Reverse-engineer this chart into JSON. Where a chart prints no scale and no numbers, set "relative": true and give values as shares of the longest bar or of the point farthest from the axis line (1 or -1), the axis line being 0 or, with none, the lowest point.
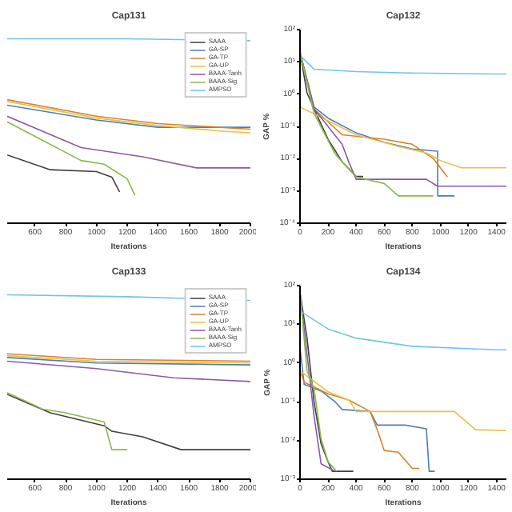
{
  "chart_data": [
    {
      "type": "line",
      "title": "Cap131",
      "xlabel": "Iterations",
      "relative": true,
      "xlim": [
        420,
        2000
      ],
      "xticks": [
        600,
        800,
        1000,
        1200,
        1400,
        1600,
        1800,
        2000
      ],
      "tick_labels": "x",
      "legend": "top right",
      "series": [
        {
          "name": "SAAA",
          "color": "#404040",
          "x": [
            420,
            700,
            1000,
            1100,
            1150
          ],
          "values": [
            0.37,
            0.29,
            0.28,
            0.25,
            0.17
          ]
        },
        {
          "name": "GA-SP",
          "color": "#4a7fb5",
          "x": [
            420,
            1000,
            1400,
            2000
          ],
          "values": [
            0.64,
            0.56,
            0.52,
            0.52
          ]
        },
        {
          "name": "GA-TP",
          "color": "#d9822b",
          "x": [
            420,
            1000,
            1400,
            2000
          ],
          "values": [
            0.67,
            0.58,
            0.54,
            0.51
          ]
        },
        {
          "name": "GA-UP",
          "color": "#e8c04a",
          "x": [
            420,
            1000,
            1400,
            1800,
            2000
          ],
          "values": [
            0.66,
            0.57,
            0.53,
            0.5,
            0.49
          ]
        },
        {
          "name": "BAAA-Tanh",
          "color": "#8a5aa8",
          "x": [
            420,
            900,
            1300,
            1650,
            2000
          ],
          "values": [
            0.58,
            0.41,
            0.36,
            0.3,
            0.3
          ]
        },
        {
          "name": "BAAA-Sig",
          "color": "#8ab84a",
          "x": [
            420,
            900,
            1050,
            1200,
            1250
          ],
          "values": [
            0.55,
            0.34,
            0.32,
            0.24,
            0.15
          ]
        },
        {
          "name": "AMPSO",
          "color": "#6ec6e6",
          "x": [
            420,
            1200,
            2000
          ],
          "values": [
            1.0,
            1.0,
            0.99
          ]
        }
      ]
    },
    {
      "type": "line",
      "title": "Cap132",
      "xlabel": "Iterations",
      "ylabel": "GAP %",
      "log": "y",
      "xlim": [
        0,
        1470
      ],
      "xticks": [
        0,
        200,
        400,
        600,
        800,
        1000,
        1200,
        1400
      ],
      "ylim": [
        0.0001,
        100
      ],
      "yticks": [
        {
          "value": 0.0001,
          "label": "10⁻⁴"
        },
        {
          "value": 0.001,
          "label": "10⁻³"
        },
        {
          "value": 0.01,
          "label": "10⁻²"
        },
        {
          "value": 0.1,
          "label": "10⁻¹"
        },
        {
          "value": 1,
          "label": "10⁰"
        },
        {
          "value": 10,
          "label": "10¹"
        },
        {
          "value": 100,
          "label": "10²"
        }
      ],
      "series": [
        {
          "color": "#404040",
          "x": [
            0,
            50,
            100,
            200,
            300,
            400,
            450
          ],
          "values": [
            20,
            1.1,
            0.35,
            0.04,
            0.008,
            0.0028,
            0.0028
          ]
        },
        {
          "color": "#4a7fb5",
          "x": [
            0,
            100,
            200,
            400,
            600,
            800,
            980,
            981,
            1100
          ],
          "values": [
            20,
            0.4,
            0.18,
            0.063,
            0.032,
            0.02,
            0.017,
            0.0007,
            0.0007
          ]
        },
        {
          "color": "#d9822b",
          "x": [
            0,
            100,
            300,
            600,
            800,
            950,
            1050
          ],
          "values": [
            20,
            0.35,
            0.055,
            0.04,
            0.028,
            0.01,
            0.0027
          ]
        },
        {
          "color": "#e8c04a",
          "x": [
            0,
            400,
            700,
            900,
            1000,
            1150,
            1470
          ],
          "values": [
            0.4,
            0.055,
            0.024,
            0.015,
            0.0087,
            0.0052,
            0.0052
          ]
        },
        {
          "color": "#8a5aa8",
          "x": [
            0,
            100,
            300,
            350,
            400,
            900,
            980,
            1470
          ],
          "values": [
            20,
            0.35,
            0.028,
            0.0074,
            0.0023,
            0.0023,
            0.0014,
            0.0014
          ]
        },
        {
          "color": "#8ab84a",
          "x": [
            0,
            100,
            250,
            400,
            600,
            700,
            950
          ],
          "values": [
            20,
            0.25,
            0.014,
            0.0027,
            0.0017,
            0.0007,
            0.0007
          ]
        },
        {
          "color": "#6ec6e6",
          "x": [
            0,
            100,
            400,
            800,
            1400,
            1470
          ],
          "values": [
            16,
            5.9,
            5,
            4.5,
            4.2,
            4.2
          ]
        }
      ]
    },
    {
      "type": "line",
      "title": "Cap133",
      "xlabel": "Iterations",
      "relative": true,
      "xlim": [
        420,
        2000
      ],
      "xticks": [
        600,
        800,
        1000,
        1200,
        1400,
        1600,
        1800,
        2000
      ],
      "tick_labels": "x",
      "legend": "top right",
      "series": [
        {
          "name": "SAAA",
          "color": "#404040",
          "x": [
            420,
            700,
            1050,
            1100,
            1300,
            1550,
            2000
          ],
          "values": [
            0.46,
            0.36,
            0.29,
            0.26,
            0.23,
            0.16,
            0.16
          ]
        },
        {
          "name": "GA-SP",
          "color": "#4a7fb5",
          "x": [
            420,
            1000,
            2000
          ],
          "values": [
            0.66,
            0.63,
            0.62
          ]
        },
        {
          "name": "GA-TP",
          "color": "#d9822b",
          "x": [
            420,
            1000,
            2000
          ],
          "values": [
            0.68,
            0.65,
            0.64
          ]
        },
        {
          "name": "GA-UP",
          "color": "#e8c04a",
          "x": [
            420,
            1000,
            2000
          ],
          "values": [
            0.67,
            0.64,
            0.63
          ]
        },
        {
          "name": "BAAA-Tanh",
          "color": "#8a5aa8",
          "x": [
            420,
            1000,
            1500,
            2000
          ],
          "values": [
            0.64,
            0.6,
            0.55,
            0.53
          ]
        },
        {
          "name": "BAAA-Sig",
          "color": "#8ab84a",
          "x": [
            420,
            650,
            800,
            1050,
            1100,
            1200
          ],
          "values": [
            0.47,
            0.38,
            0.36,
            0.31,
            0.16,
            0.16
          ]
        },
        {
          "name": "AMPSO",
          "color": "#6ec6e6",
          "x": [
            420,
            1200,
            2000
          ],
          "values": [
            1.0,
            0.99,
            0.97
          ]
        }
      ]
    },
    {
      "type": "line",
      "title": "Cap134",
      "xlabel": "Iterations",
      "ylabel": "GAP %",
      "log": "y",
      "xlim": [
        0,
        1470
      ],
      "xticks": [
        0,
        200,
        400,
        600,
        800,
        1000,
        1200,
        1400
      ],
      "ylim": [
        0.001,
        100
      ],
      "yticks": [
        {
          "value": 0.001,
          "label": "10⁻³"
        },
        {
          "value": 0.01,
          "label": "10⁻²"
        },
        {
          "value": 0.1,
          "label": "10⁻¹"
        },
        {
          "value": 1,
          "label": "10⁰"
        },
        {
          "value": 10,
          "label": "10¹"
        },
        {
          "value": 100,
          "label": "10²"
        }
      ],
      "series": [
        {
          "color": "#404040",
          "x": [
            0,
            50,
            100,
            150,
            200,
            230,
            380
          ],
          "values": [
            66,
            4.4,
            0.1,
            0.0083,
            0.0028,
            0.0016,
            0.0016
          ]
        },
        {
          "color": "#4a7fb5",
          "x": [
            0,
            30,
            150,
            250,
            300,
            500,
            550,
            750,
            900,
            920,
            960
          ],
          "values": [
            2.5,
            0.28,
            0.19,
            0.1,
            0.063,
            0.056,
            0.025,
            0.025,
            0.02,
            0.0016,
            0.0016
          ]
        },
        {
          "color": "#d9822b",
          "x": [
            0,
            30,
            200,
            350,
            500,
            550,
            600,
            700,
            800,
            850
          ],
          "values": [
            0.63,
            0.32,
            0.16,
            0.11,
            0.056,
            0.019,
            0.0055,
            0.005,
            0.0019,
            0.0019
          ]
        },
        {
          "color": "#e8c04a",
          "x": [
            0,
            200,
            350,
            400,
            1100,
            1250,
            1470
          ],
          "values": [
            0.63,
            0.18,
            0.11,
            0.056,
            0.056,
            0.019,
            0.018
          ]
        },
        {
          "color": "#8a5aa8",
          "x": [
            0,
            100,
            150,
            250
          ],
          "values": [
            66,
            0.043,
            0.0025,
            0.0016
          ]
        },
        {
          "color": "#8ab84a",
          "x": [
            0,
            50,
            100,
            150,
            200,
            260
          ],
          "values": [
            66,
            0.63,
            0.22,
            0.011,
            0.0028,
            0.0016
          ]
        },
        {
          "color": "#6ec6e6",
          "x": [
            0,
            200,
            400,
            800,
            1400,
            1470
          ],
          "values": [
            22,
            7.6,
            4.4,
            2.7,
            2.2,
            2.2
          ]
        }
      ]
    }
  ]
}
